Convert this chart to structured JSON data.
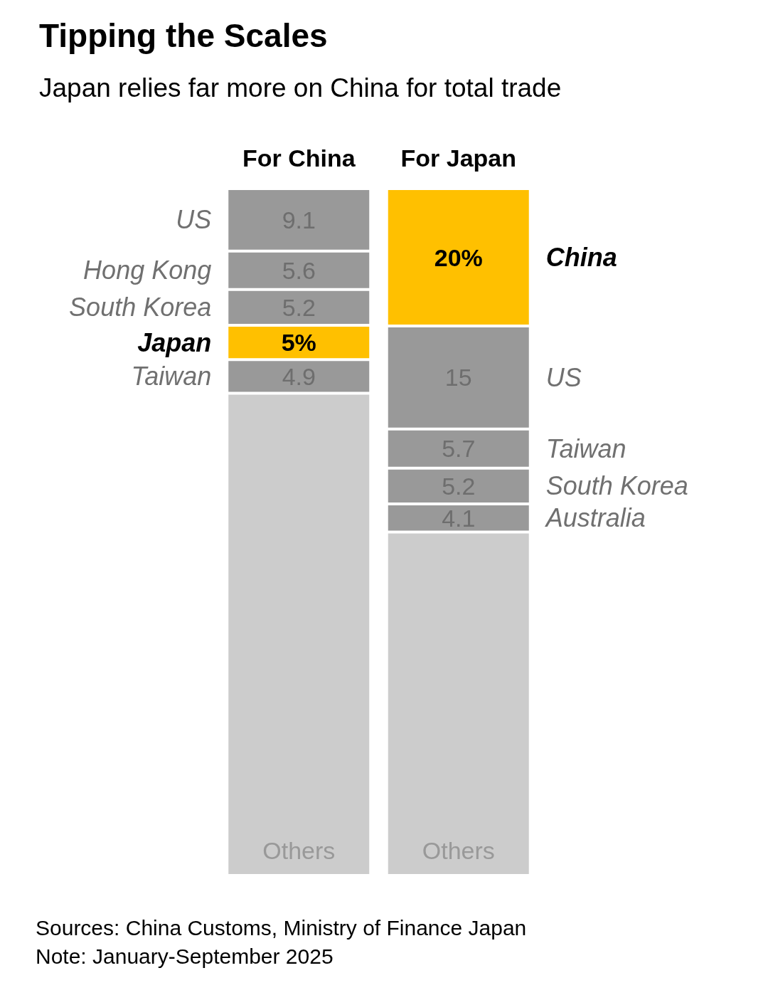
{
  "chart_data": {
    "type": "bar",
    "stacked": true,
    "title": "Tipping the Scales",
    "subtitle": "Japan relies far more on China for total trade",
    "categories": [
      "For China",
      "For Japan"
    ],
    "ylim": [
      0,
      100
    ],
    "tick_labels": "x",
    "series": [
      {
        "values": [
          70.2,
          50
        ],
        "colors": [
          "#cccccc",
          "#cccccc"
        ],
        "value_labels": [
          "Others",
          "Others"
        ]
      },
      {
        "values": [
          4.9,
          4.1
        ],
        "colors": [
          "#999999",
          "#999999"
        ],
        "value_labels": [
          "4.9",
          "4.1"
        ]
      },
      {
        "values": [
          5,
          5.2
        ],
        "colors": [
          "#ffc000",
          "#999999"
        ],
        "value_labels": [
          "5%",
          "5.2"
        ]
      },
      {
        "values": [
          5.2,
          5.7
        ],
        "colors": [
          "#999999",
          "#999999"
        ],
        "value_labels": [
          "5.2",
          "5.7"
        ]
      },
      {
        "values": [
          5.6,
          15
        ],
        "colors": [
          "#999999",
          "#999999"
        ],
        "value_labels": [
          "5.6",
          "15"
        ]
      },
      {
        "values": [
          9.1,
          20
        ],
        "colors": [
          "#999999",
          "#ffc000"
        ],
        "value_labels": [
          "9.1",
          "20%"
        ]
      }
    ],
    "annotations": [
      "Taiwan",
      "Japan",
      "South Korea",
      "Hong Kong",
      "US",
      "Australia",
      "South Korea",
      "Taiwan",
      "US",
      "China",
      "Sources: China Customs, Ministry of Finance Japan",
      "Note: January-September 2025"
    ]
  }
}
